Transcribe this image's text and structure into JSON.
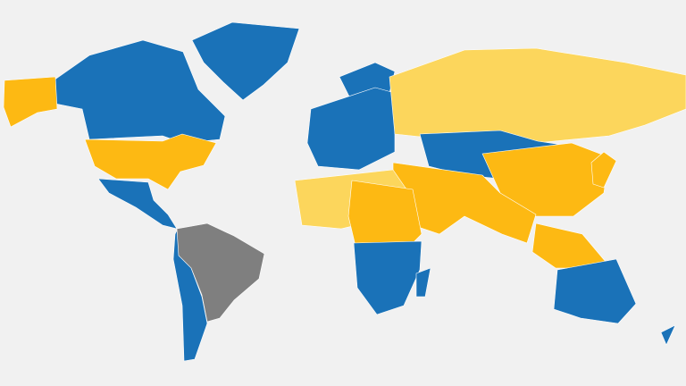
{
  "map": {
    "background_color": "#f1f1f1",
    "colors": {
      "blue": "#1a72b8",
      "orange": "#fdb913",
      "light_yellow": "#fcd65c",
      "gray": "#7f7f7f"
    },
    "regions": [
      {
        "name": "greenland",
        "category": "blue"
      },
      {
        "name": "canada",
        "category": "blue"
      },
      {
        "name": "alaska",
        "category": "orange"
      },
      {
        "name": "united-states",
        "category": "orange"
      },
      {
        "name": "mexico-central-america",
        "category": "blue"
      },
      {
        "name": "south-america-west-south",
        "category": "blue"
      },
      {
        "name": "brazil-region",
        "category": "gray"
      },
      {
        "name": "scandinavia",
        "category": "blue"
      },
      {
        "name": "europe",
        "category": "blue"
      },
      {
        "name": "russia",
        "category": "light_yellow"
      },
      {
        "name": "central-asia",
        "category": "blue"
      },
      {
        "name": "china",
        "category": "orange"
      },
      {
        "name": "middle-east-south-asia",
        "category": "orange"
      },
      {
        "name": "southeast-asia",
        "category": "orange"
      },
      {
        "name": "north-africa",
        "category": "light_yellow"
      },
      {
        "name": "central-africa",
        "category": "orange"
      },
      {
        "name": "southern-africa",
        "category": "blue"
      },
      {
        "name": "madagascar",
        "category": "blue"
      },
      {
        "name": "australia",
        "category": "blue"
      },
      {
        "name": "new-zealand",
        "category": "blue"
      },
      {
        "name": "japan",
        "category": "orange"
      }
    ]
  }
}
